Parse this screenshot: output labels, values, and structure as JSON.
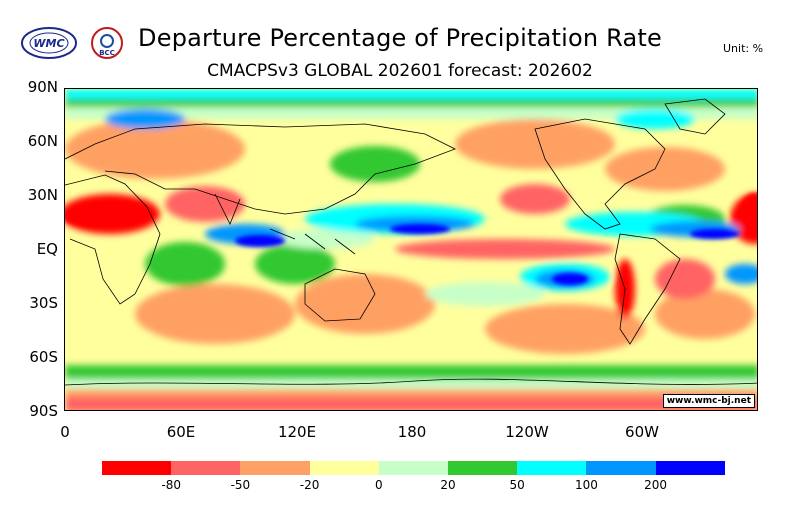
{
  "header": {
    "logo_left": "WMC",
    "logo_right": "BCC",
    "title": "Departure Percentage of Precipitation Rate",
    "subtitle": "CMACPSv3 GLOBAL 202601 forecast: 202602",
    "unit": "Unit: %"
  },
  "map": {
    "latitude_labels": [
      "90N",
      "60N",
      "30N",
      "EQ",
      "30S",
      "60S",
      "90S"
    ],
    "longitude_labels": [
      "0",
      "60E",
      "120E",
      "180",
      "120W",
      "60W"
    ],
    "credit": "www.wmc-bj.net"
  },
  "legend": {
    "colors": [
      "#ff0000",
      "#ff6464",
      "#ffa064",
      "#ffff9e",
      "#c8ffc8",
      "#32c832",
      "#00ffff",
      "#0096ff",
      "#0000ff"
    ],
    "labels": [
      "-80",
      "-50",
      "-20",
      "0",
      "20",
      "50",
      "100",
      "200"
    ]
  }
}
